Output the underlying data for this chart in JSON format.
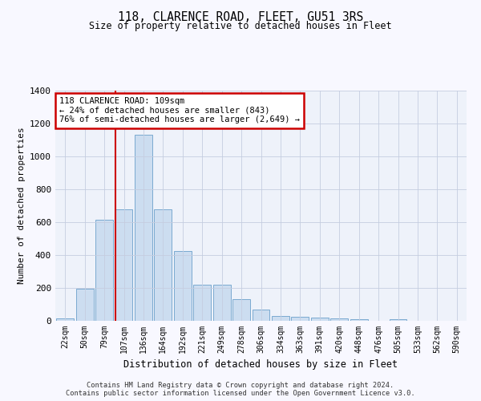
{
  "title": "118, CLARENCE ROAD, FLEET, GU51 3RS",
  "subtitle": "Size of property relative to detached houses in Fleet",
  "xlabel": "Distribution of detached houses by size in Fleet",
  "ylabel": "Number of detached properties",
  "bar_labels": [
    "22sqm",
    "50sqm",
    "79sqm",
    "107sqm",
    "136sqm",
    "164sqm",
    "192sqm",
    "221sqm",
    "249sqm",
    "278sqm",
    "306sqm",
    "334sqm",
    "363sqm",
    "391sqm",
    "420sqm",
    "448sqm",
    "476sqm",
    "505sqm",
    "533sqm",
    "562sqm",
    "590sqm"
  ],
  "bar_values": [
    15,
    195,
    615,
    675,
    1130,
    675,
    425,
    220,
    220,
    130,
    70,
    28,
    25,
    20,
    14,
    10,
    0,
    10,
    0,
    0,
    0
  ],
  "bar_color": "#ccddf0",
  "bar_edge_color": "#7aaad0",
  "ylim": [
    0,
    1400
  ],
  "yticks": [
    0,
    200,
    400,
    600,
    800,
    1000,
    1200,
    1400
  ],
  "red_line_bar_index": 3,
  "annotation_text": "118 CLARENCE ROAD: 109sqm\n← 24% of detached houses are smaller (843)\n76% of semi-detached houses are larger (2,649) →",
  "footer_line1": "Contains HM Land Registry data © Crown copyright and database right 2024.",
  "footer_line2": "Contains public sector information licensed under the Open Government Licence v3.0.",
  "bg_color": "#eef2fa",
  "grid_color": "#c5cde0",
  "annotation_box_color": "#ffffff",
  "annotation_box_edge": "#cc0000",
  "red_line_color": "#cc0000",
  "fig_bg_color": "#f8f8ff"
}
